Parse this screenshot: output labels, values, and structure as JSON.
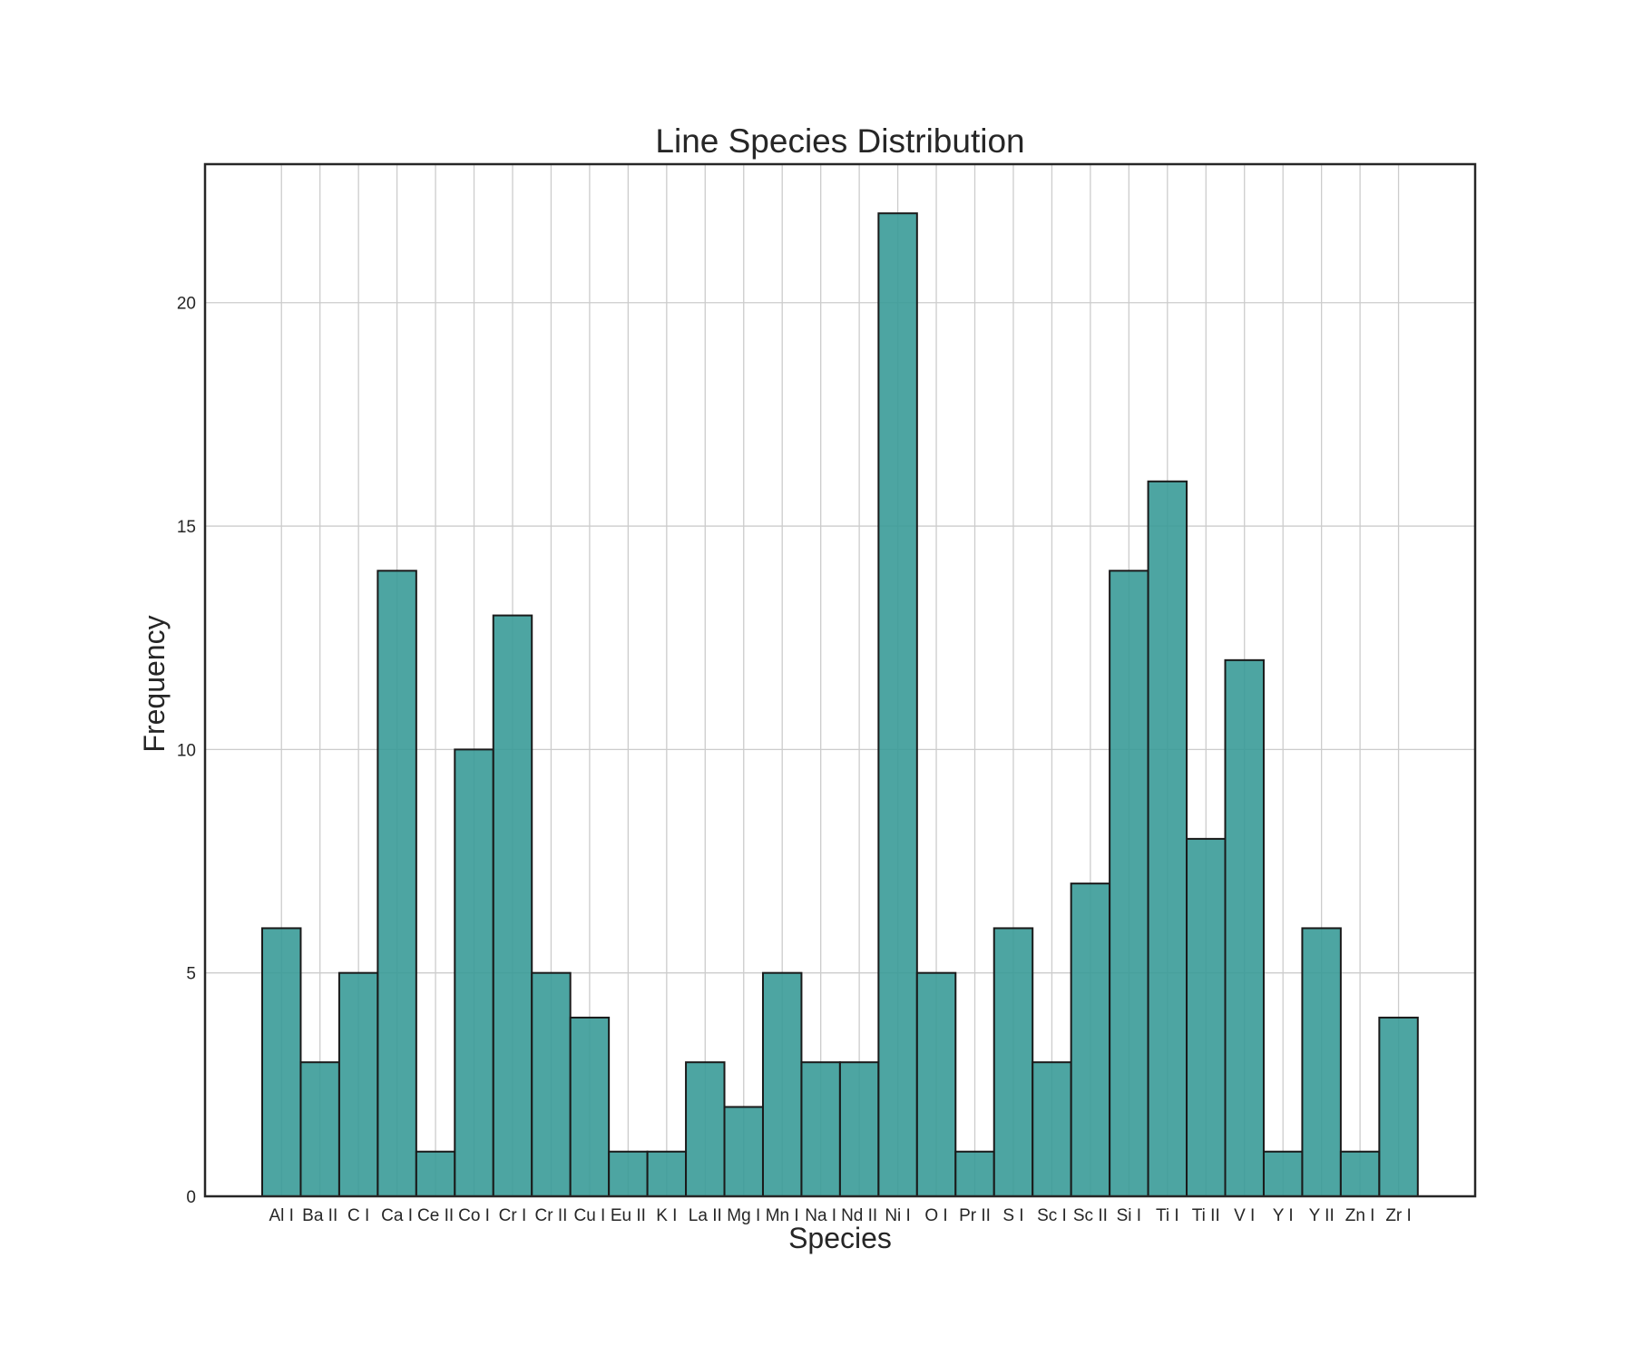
{
  "chart_data": {
    "type": "bar",
    "title": "Line Species Distribution",
    "xlabel": "Species",
    "ylabel": "Frequency",
    "categories": [
      "Al I",
      "Ba II",
      "C I",
      "Ca I",
      "Ce II",
      "Co I",
      "Cr I",
      "Cr II",
      "Cu I",
      "Eu II",
      "K I",
      "La II",
      "Mg I",
      "Mn I",
      "Na I",
      "Nd II",
      "Ni I",
      "O I",
      "Pr II",
      "S I",
      "Sc I",
      "Sc II",
      "Si I",
      "Ti I",
      "Ti II",
      "V I",
      "Y I",
      "Y II",
      "Zn I",
      "Zr I"
    ],
    "values": [
      6,
      3,
      5,
      14,
      1,
      10,
      13,
      5,
      4,
      1,
      1,
      3,
      2,
      5,
      3,
      3,
      22,
      5,
      1,
      6,
      3,
      7,
      14,
      16,
      8,
      12,
      1,
      6,
      1,
      4
    ],
    "ylim": [
      0,
      23.1
    ],
    "yticks": [
      0,
      5,
      10,
      15,
      20
    ],
    "grid": true,
    "bar_color": "#3a9b98",
    "edge_color": "#1a1a1a"
  }
}
